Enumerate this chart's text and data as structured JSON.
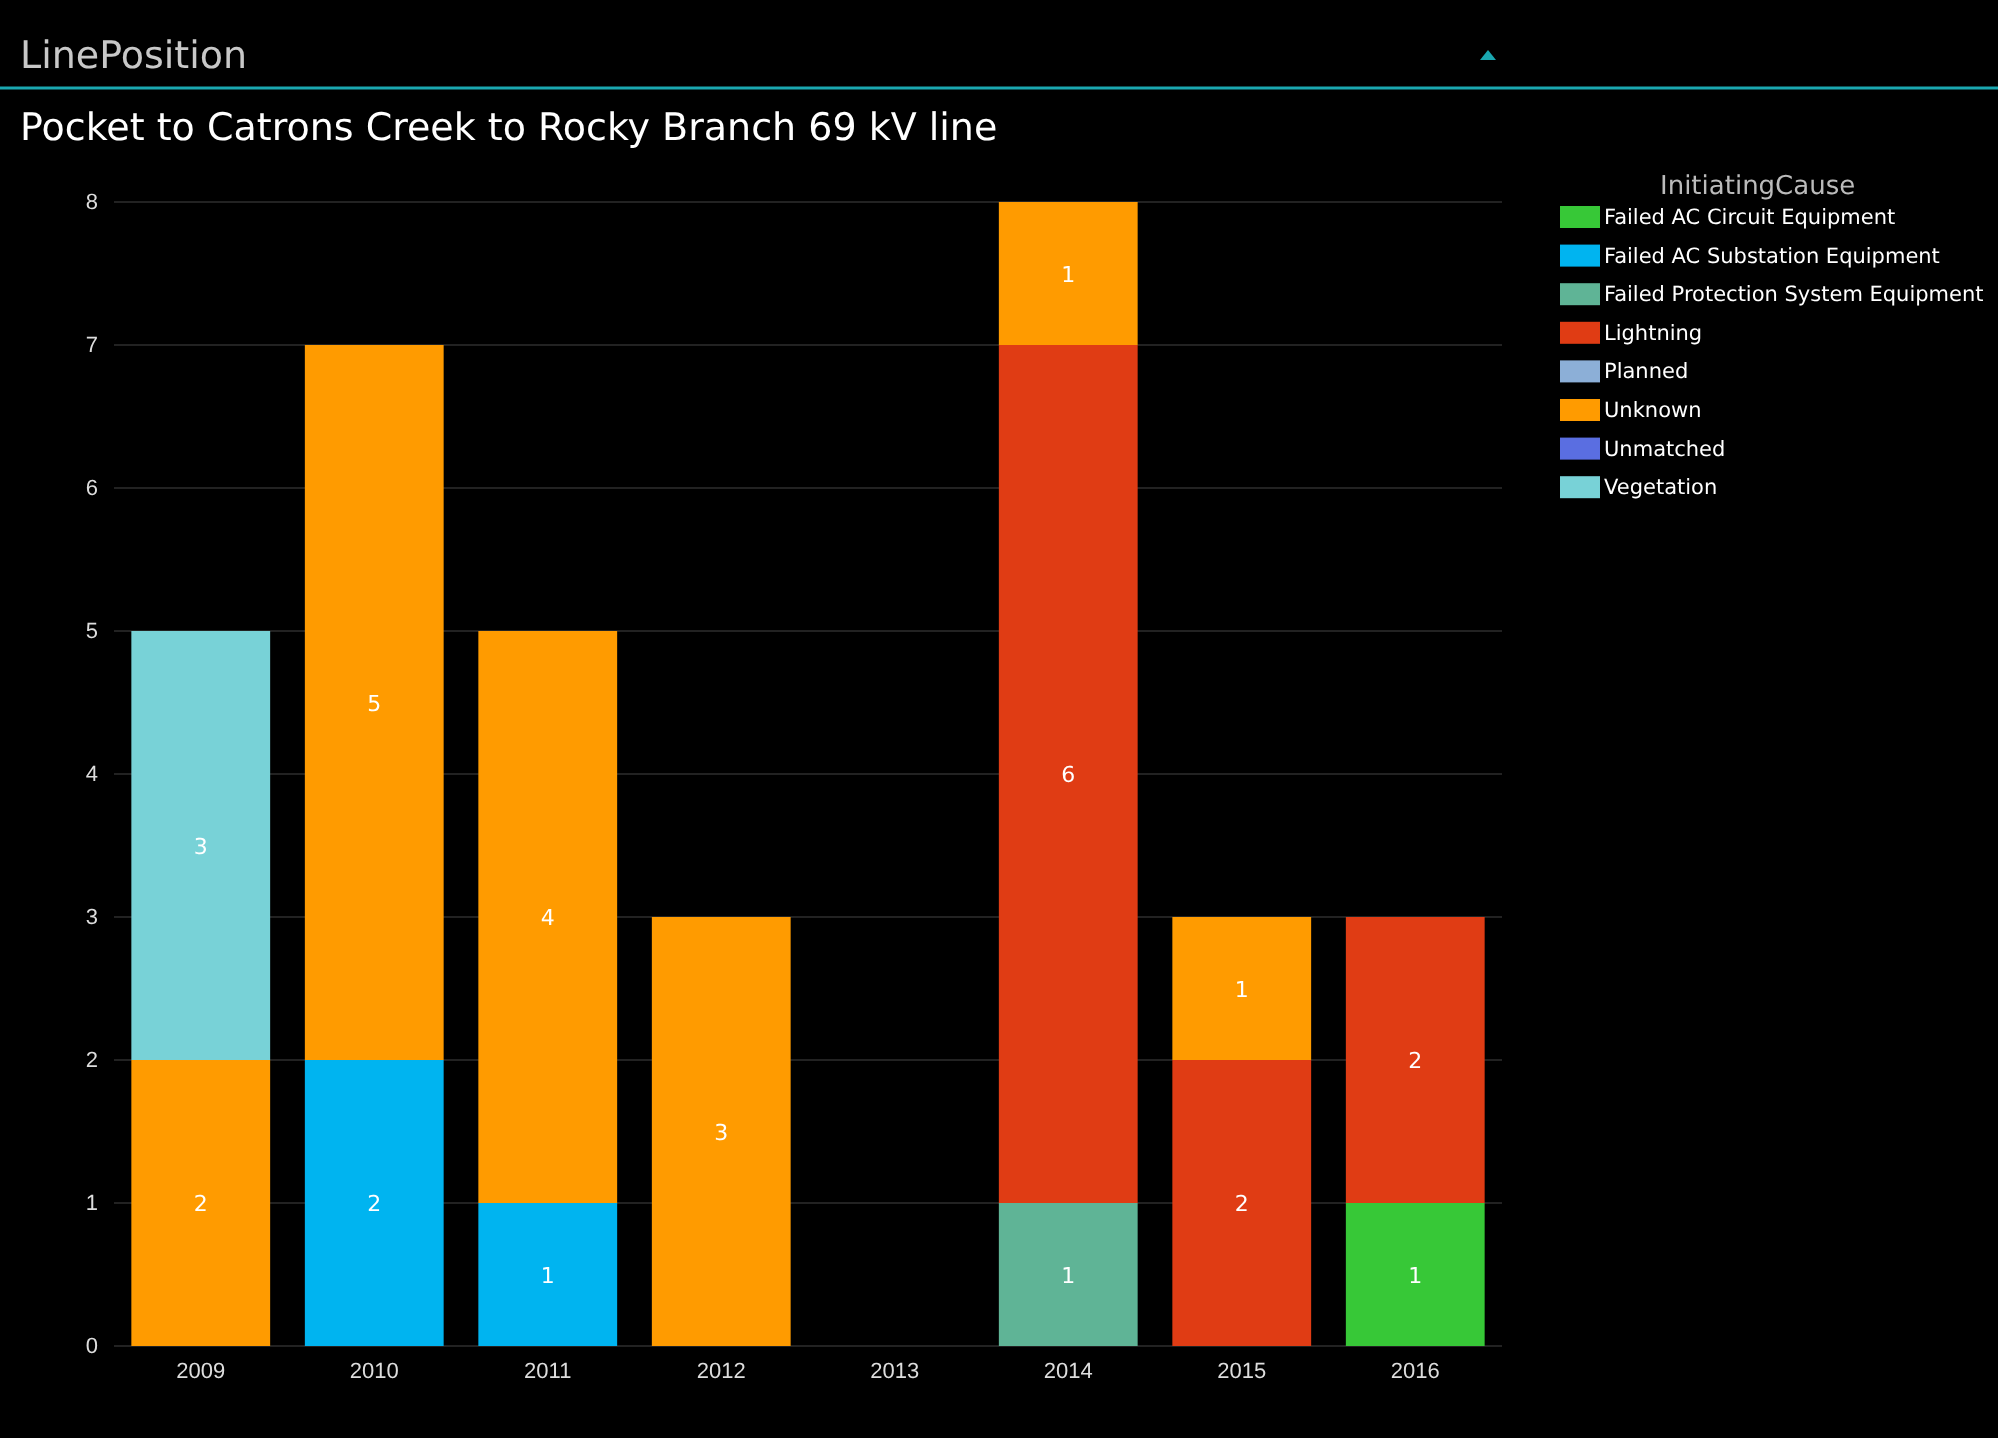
{
  "chart_data": {
    "type": "bar",
    "title": "LinePosition",
    "subtitle": "Pocket to Catrons Creek to Rocky Branch 69 kV line",
    "legend_title": "InitiatingCause",
    "categories": [
      "2009",
      "2010",
      "2011",
      "2012",
      "2013",
      "2014",
      "2015",
      "2016"
    ],
    "stacked": true,
    "data_labels": true,
    "grid": "y",
    "legend": "top right",
    "ylim": [
      0,
      8
    ],
    "yticks": [
      0,
      1,
      2,
      3,
      4,
      5,
      6,
      7,
      8
    ],
    "series": [
      {
        "name": "Failed AC Circuit Equipment",
        "color": "#37c837",
        "values": [
          null,
          null,
          null,
          null,
          null,
          null,
          null,
          1
        ]
      },
      {
        "name": "Failed AC Substation Equipment",
        "color": "#00b4f0",
        "values": [
          null,
          2,
          1,
          null,
          null,
          null,
          null,
          null
        ]
      },
      {
        "name": "Failed Protection System Equipment",
        "color": "#5fb496",
        "values": [
          null,
          null,
          null,
          null,
          null,
          1,
          null,
          null
        ]
      },
      {
        "name": "Lightning",
        "color": "#e03c14",
        "values": [
          null,
          null,
          null,
          null,
          null,
          6,
          2,
          2
        ]
      },
      {
        "name": "Planned",
        "color": "#8cafd7",
        "values": [
          null,
          null,
          null,
          null,
          null,
          null,
          null,
          null
        ]
      },
      {
        "name": "Unknown",
        "color": "#ff9b00",
        "values": [
          2,
          5,
          4,
          3,
          null,
          1,
          1,
          null
        ]
      },
      {
        "name": "Unmatched",
        "color": "#5a6ee1",
        "values": [
          null,
          null,
          null,
          null,
          null,
          null,
          null,
          null
        ]
      },
      {
        "name": "Vegetation",
        "color": "#78d2d7",
        "values": [
          3,
          null,
          null,
          null,
          null,
          null,
          null,
          null
        ]
      }
    ]
  }
}
